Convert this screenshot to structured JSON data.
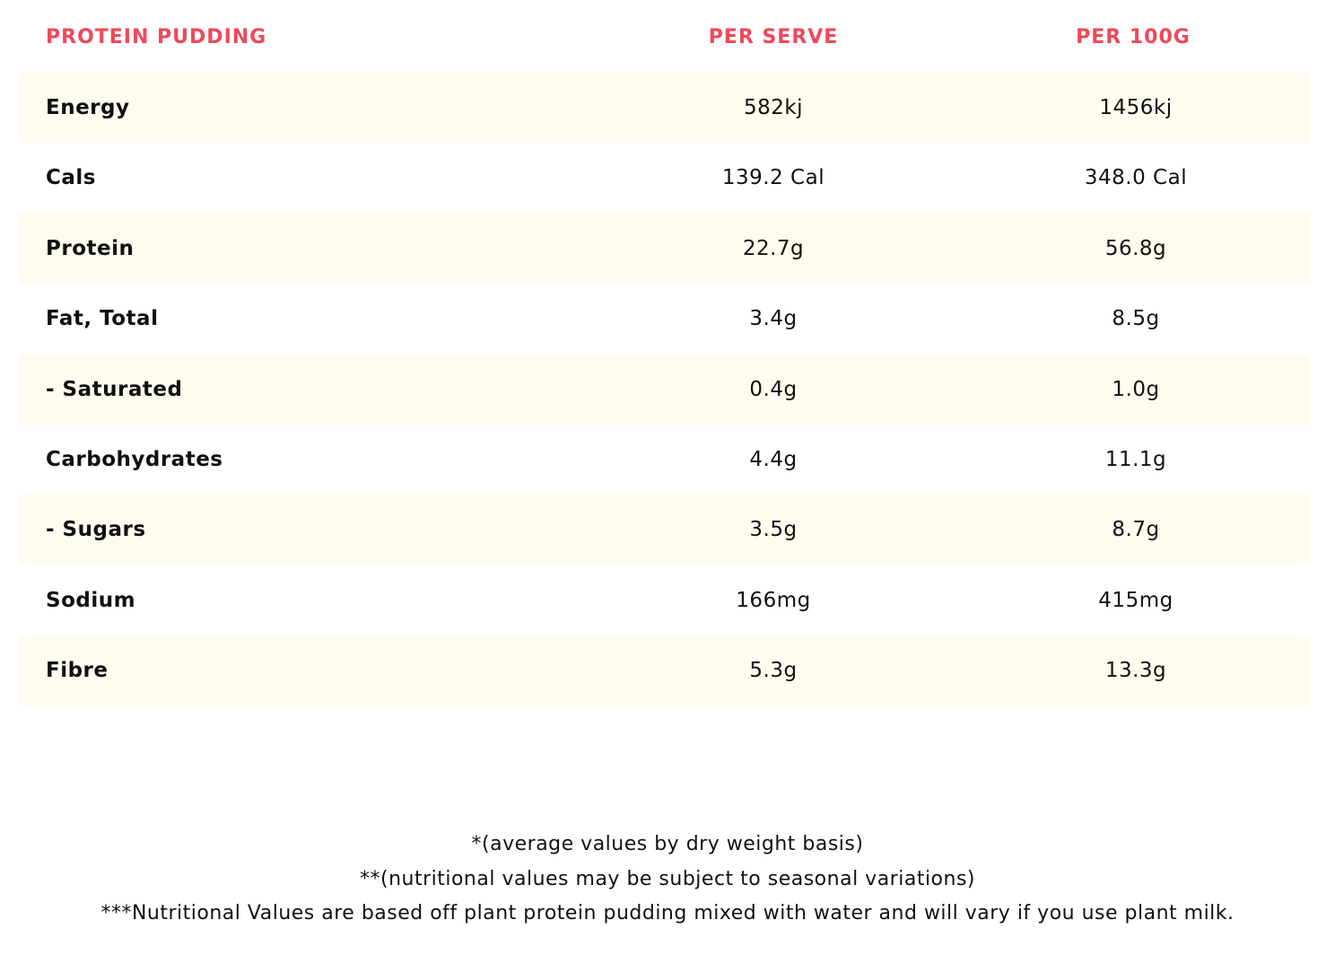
{
  "table": {
    "header": [
      "PROTEIN PUDDING",
      "PER SERVE",
      "PER 100G"
    ],
    "rows": [
      [
        "Energy",
        "582kj",
        "1456kj"
      ],
      [
        "Cals",
        "139.2 Cal",
        "348.0 Cal"
      ],
      [
        "Protein",
        "22.7g",
        "56.8g"
      ],
      [
        "Fat, Total",
        "3.4g",
        "8.5g"
      ],
      [
        "- Saturated",
        "0.4g",
        "1.0g"
      ],
      [
        "Carbohydrates",
        "4.4g",
        "11.1g"
      ],
      [
        "- Sugars",
        "3.5g",
        "8.7g"
      ],
      [
        "Sodium",
        "166mg",
        "415mg"
      ],
      [
        "Fibre",
        "5.3g",
        "13.3g"
      ]
    ]
  },
  "notes": [
    "*(average values by dry weight basis)",
    "**(nutritional values may be subject to seasonal variations)",
    "***Nutritional Values are based off plant protein pudding mixed with water and will vary if you use plant milk."
  ]
}
